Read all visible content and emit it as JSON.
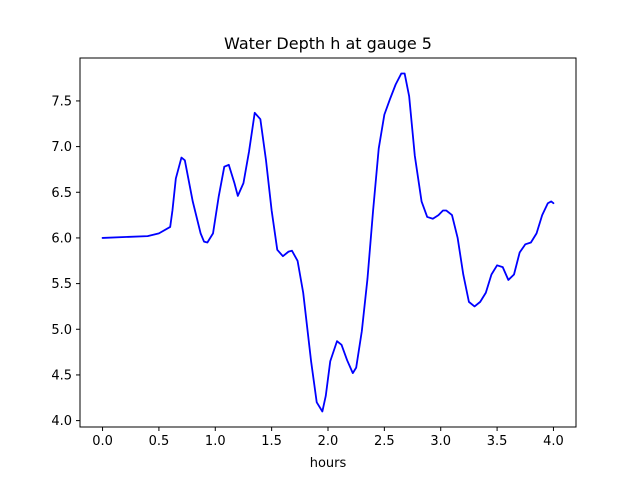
{
  "chart_data": {
    "type": "line",
    "title": "Water Depth h at gauge 5",
    "xlabel": "hours",
    "ylabel": "",
    "xlim": [
      -0.2,
      4.2
    ],
    "ylim": [
      3.93,
      7.97
    ],
    "xticks": [
      0.0,
      0.5,
      1.0,
      1.5,
      2.0,
      2.5,
      3.0,
      3.5,
      4.0
    ],
    "xtick_labels": [
      "0.0",
      "0.5",
      "1.0",
      "1.5",
      "2.0",
      "2.5",
      "3.0",
      "3.5",
      "4.0"
    ],
    "yticks": [
      4.0,
      4.5,
      5.0,
      5.5,
      6.0,
      6.5,
      7.0,
      7.5
    ],
    "ytick_labels": [
      "4.0",
      "4.5",
      "5.0",
      "5.5",
      "6.0",
      "6.5",
      "7.0",
      "7.5"
    ],
    "grid": false,
    "legend": "none",
    "series": [
      {
        "color": "#0000ff",
        "x": [
          0.0,
          0.2,
          0.4,
          0.5,
          0.6,
          0.62,
          0.65,
          0.7,
          0.73,
          0.8,
          0.87,
          0.9,
          0.93,
          0.98,
          1.03,
          1.08,
          1.12,
          1.17,
          1.2,
          1.25,
          1.3,
          1.35,
          1.4,
          1.45,
          1.5,
          1.55,
          1.6,
          1.65,
          1.68,
          1.73,
          1.78,
          1.85,
          1.9,
          1.95,
          1.98,
          2.02,
          2.08,
          2.12,
          2.17,
          2.22,
          2.25,
          2.3,
          2.35,
          2.4,
          2.45,
          2.5,
          2.55,
          2.6,
          2.65,
          2.68,
          2.72,
          2.77,
          2.83,
          2.88,
          2.93,
          2.98,
          3.02,
          3.05,
          3.1,
          3.15,
          3.2,
          3.25,
          3.3,
          3.35,
          3.4,
          3.45,
          3.5,
          3.55,
          3.6,
          3.65,
          3.7,
          3.75,
          3.8,
          3.85,
          3.9,
          3.95,
          3.98,
          4.0
        ],
        "y": [
          6.0,
          6.01,
          6.02,
          6.05,
          6.12,
          6.3,
          6.65,
          6.88,
          6.85,
          6.4,
          6.05,
          5.96,
          5.95,
          6.05,
          6.45,
          6.78,
          6.8,
          6.6,
          6.46,
          6.6,
          6.95,
          7.37,
          7.3,
          6.85,
          6.3,
          5.87,
          5.8,
          5.85,
          5.86,
          5.75,
          5.4,
          4.65,
          4.2,
          4.1,
          4.27,
          4.65,
          4.87,
          4.83,
          4.66,
          4.52,
          4.58,
          4.98,
          5.55,
          6.3,
          6.98,
          7.35,
          7.52,
          7.68,
          7.8,
          7.8,
          7.55,
          6.9,
          6.4,
          6.23,
          6.21,
          6.25,
          6.3,
          6.3,
          6.25,
          6.0,
          5.6,
          5.3,
          5.25,
          5.3,
          5.4,
          5.6,
          5.7,
          5.68,
          5.54,
          5.6,
          5.84,
          5.93,
          5.95,
          6.05,
          6.25,
          6.38,
          6.4,
          6.38
        ]
      }
    ]
  }
}
